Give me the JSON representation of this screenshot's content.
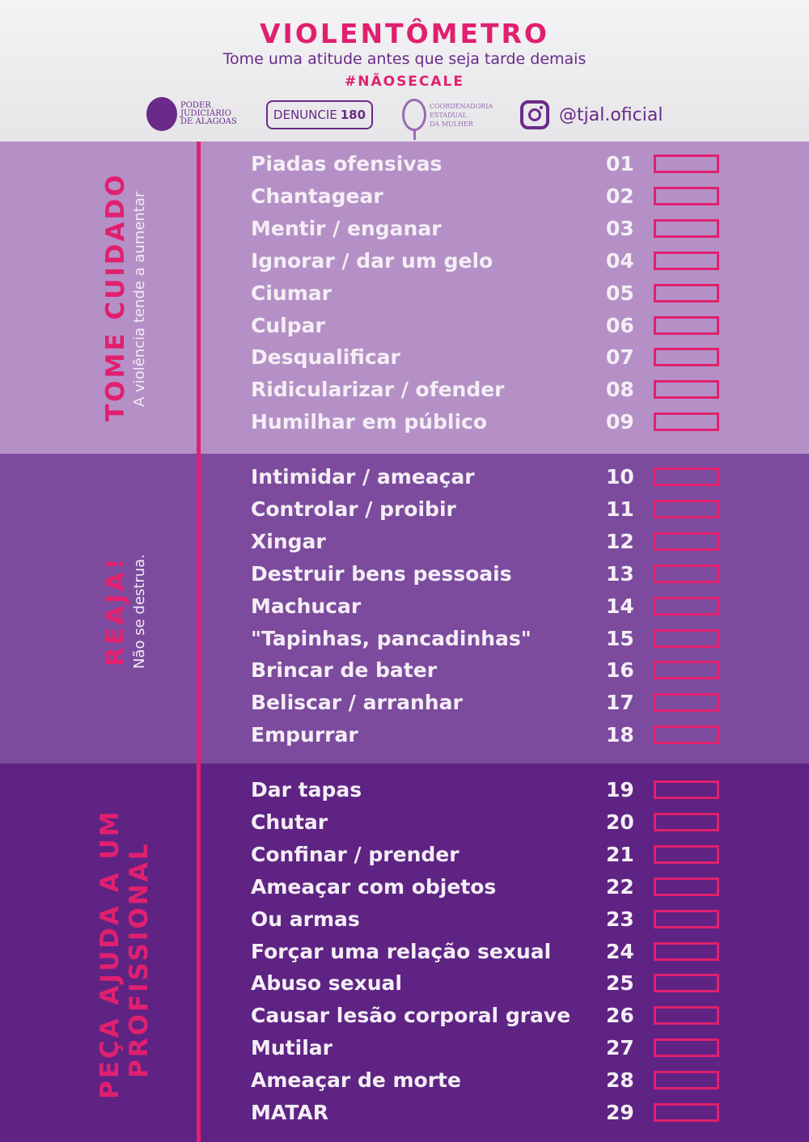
{
  "header": {
    "title": "VIOLENTÔMETRO",
    "subtitle": "Tome uma atitude antes que seja tarde demais",
    "hashtag": "#NÃOSECALE",
    "logo_tj": [
      "PODER",
      "JUDICIÁRIO",
      "DE ALAGOAS"
    ],
    "denuncie": {
      "text": "DENUNCIE",
      "number": "180"
    },
    "logo_cem": [
      "COORDENADORIA",
      "ESTADUAL",
      "DA MULHER"
    ],
    "instagram": "@tjal.oficial"
  },
  "colors": {
    "accent": "#e0206f",
    "brand": "#6a2a8a",
    "level1": "#b590c6",
    "level2": "#7c4b9d",
    "level3": "#5e2383"
  },
  "sections": [
    {
      "title": "TOME CUIDADO",
      "subtitle": "A violência tende a aumentar",
      "items": [
        {
          "n": "01",
          "label": "Piadas ofensivas"
        },
        {
          "n": "02",
          "label": "Chantagear"
        },
        {
          "n": "03",
          "label": "Mentir / enganar"
        },
        {
          "n": "04",
          "label": "Ignorar / dar um gelo"
        },
        {
          "n": "05",
          "label": "Ciumar"
        },
        {
          "n": "06",
          "label": "Culpar"
        },
        {
          "n": "07",
          "label": "Desqualificar"
        },
        {
          "n": "08",
          "label": "Ridicularizar / ofender"
        },
        {
          "n": "09",
          "label": "Humilhar em público"
        }
      ]
    },
    {
      "title": "REAJA!",
      "subtitle": "Não se destrua.",
      "items": [
        {
          "n": "10",
          "label": "Intimidar / ameaçar"
        },
        {
          "n": "11",
          "label": "Controlar / proibir"
        },
        {
          "n": "12",
          "label": "Xingar"
        },
        {
          "n": "13",
          "label": "Destruir bens pessoais"
        },
        {
          "n": "14",
          "label": "Machucar"
        },
        {
          "n": "15",
          "label": "\"Tapinhas, pancadinhas\""
        },
        {
          "n": "16",
          "label": "Brincar de bater"
        },
        {
          "n": "17",
          "label": "Beliscar / arranhar"
        },
        {
          "n": "18",
          "label": "Empurrar"
        }
      ]
    },
    {
      "title": "PEÇA AJUDA A UM",
      "title2": "PROFISSIONAL",
      "items": [
        {
          "n": "19",
          "label": "Dar tapas"
        },
        {
          "n": "20",
          "label": "Chutar"
        },
        {
          "n": "21",
          "label": "Confinar / prender"
        },
        {
          "n": "22",
          "label": "Ameaçar com objetos"
        },
        {
          "n": "23",
          "label": "Ou armas"
        },
        {
          "n": "24",
          "label": "Forçar uma relação sexual"
        },
        {
          "n": "25",
          "label": "Abuso sexual"
        },
        {
          "n": "26",
          "label": "Causar lesão corporal grave"
        },
        {
          "n": "27",
          "label": "Mutilar"
        },
        {
          "n": "28",
          "label": "Ameaçar de morte"
        },
        {
          "n": "29",
          "label": "MATAR"
        }
      ]
    }
  ]
}
